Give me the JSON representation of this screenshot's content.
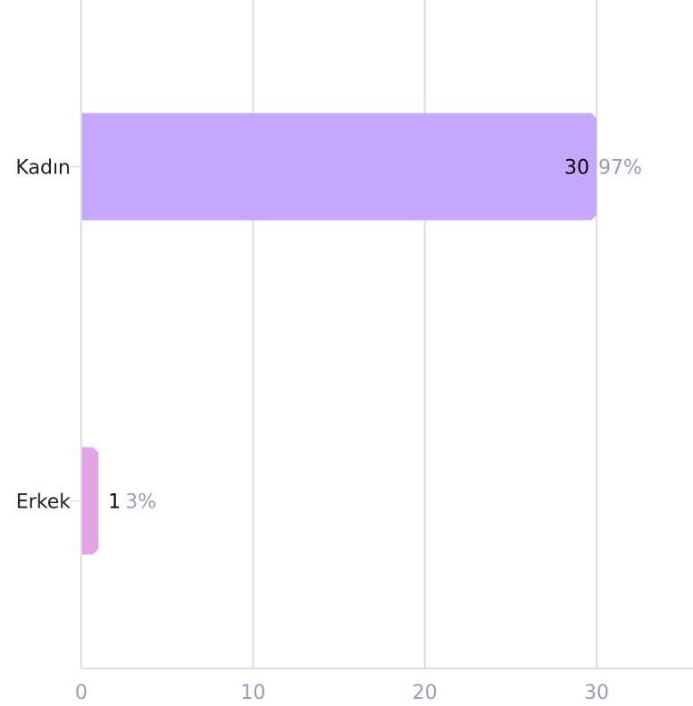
{
  "chart_data": {
    "type": "bar",
    "orientation": "horizontal",
    "categories": [
      "Kadın",
      "Erkek"
    ],
    "values": [
      30,
      1
    ],
    "percent_labels": [
      "97%",
      "3%"
    ],
    "xlim": [
      0,
      35
    ],
    "xticks": [
      "0",
      "10",
      "20",
      "30"
    ],
    "grid": true,
    "colors": {
      "bars": [
        "#c6a7ff",
        "#e2a2e6"
      ],
      "grid": "#dddde6",
      "axis": "#dcdcf0",
      "tick_text": "#9a9cb3",
      "category_text": "#1f1f1f",
      "value_text": "#000000",
      "percent_text": "#9a9cb3"
    }
  }
}
